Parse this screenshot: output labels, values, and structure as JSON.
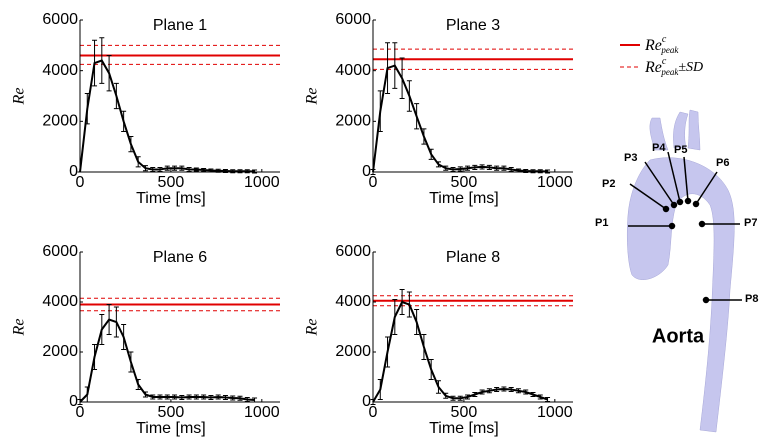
{
  "chart_data": [
    {
      "type": "line",
      "title": "Plane 1",
      "xlabel": "Time [ms]",
      "ylabel": "Re",
      "xlim": [
        0,
        1100
      ],
      "xticks": [
        0,
        500,
        1000
      ],
      "ylim": [
        0,
        6000
      ],
      "yticks": [
        0,
        2000,
        4000,
        6000
      ],
      "x": [
        0,
        40,
        80,
        120,
        160,
        200,
        240,
        280,
        320,
        360,
        400,
        440,
        480,
        520,
        560,
        600,
        640,
        680,
        720,
        760,
        800,
        840,
        880,
        920,
        960
      ],
      "series": [
        {
          "color": "#000000",
          "values": [
            0,
            2500,
            4300,
            4400,
            3900,
            3000,
            2000,
            1100,
            400,
            150,
            100,
            100,
            150,
            150,
            150,
            100,
            100,
            80,
            60,
            50,
            40,
            30,
            30,
            30,
            20
          ],
          "errors": [
            0,
            600,
            900,
            900,
            700,
            500,
            400,
            300,
            200,
            100,
            80,
            80,
            80,
            80,
            80,
            80,
            60,
            60,
            60,
            60,
            60,
            60,
            60,
            60,
            60
          ]
        }
      ],
      "reference": {
        "value": 4600,
        "lower": 4250,
        "upper": 5000,
        "color": "#e00000"
      }
    },
    {
      "type": "line",
      "title": "Plane 3",
      "xlabel": "Time [ms]",
      "ylabel": "Re",
      "xlim": [
        0,
        1100
      ],
      "xticks": [
        0,
        500,
        1000
      ],
      "ylim": [
        0,
        6000
      ],
      "yticks": [
        0,
        2000,
        4000,
        6000
      ],
      "x": [
        0,
        40,
        80,
        120,
        160,
        200,
        240,
        280,
        320,
        360,
        400,
        440,
        480,
        520,
        560,
        600,
        640,
        680,
        720,
        760,
        800,
        840,
        880,
        920,
        960
      ],
      "series": [
        {
          "color": "#000000",
          "values": [
            0,
            2400,
            4100,
            4200,
            3700,
            3000,
            2200,
            1400,
            700,
            300,
            150,
            100,
            120,
            150,
            180,
            200,
            180,
            150,
            150,
            100,
            60,
            40,
            30,
            30,
            20
          ],
          "errors": [
            100,
            800,
            1000,
            900,
            800,
            600,
            500,
            300,
            200,
            100,
            80,
            80,
            80,
            80,
            80,
            80,
            80,
            80,
            80,
            80,
            60,
            60,
            60,
            60,
            60
          ]
        }
      ],
      "reference": {
        "value": 4450,
        "lower": 4050,
        "upper": 4850,
        "color": "#e00000"
      }
    },
    {
      "type": "line",
      "title": "Plane 6",
      "xlabel": "Time [ms]",
      "ylabel": "Re",
      "xlim": [
        0,
        1100
      ],
      "xticks": [
        0,
        500,
        1000
      ],
      "ylim": [
        0,
        6000
      ],
      "yticks": [
        0,
        2000,
        4000,
        6000
      ],
      "x": [
        0,
        40,
        80,
        120,
        160,
        200,
        240,
        280,
        320,
        360,
        400,
        440,
        480,
        520,
        560,
        600,
        640,
        680,
        720,
        760,
        800,
        840,
        880,
        920,
        960
      ],
      "series": [
        {
          "color": "#000000",
          "values": [
            0,
            300,
            1800,
            2900,
            3300,
            3200,
            2600,
            1600,
            700,
            300,
            200,
            200,
            200,
            200,
            180,
            200,
            200,
            200,
            180,
            200,
            180,
            160,
            150,
            100,
            80
          ],
          "errors": [
            100,
            300,
            500,
            600,
            600,
            600,
            500,
            400,
            200,
            100,
            80,
            80,
            80,
            80,
            80,
            80,
            80,
            80,
            80,
            80,
            80,
            80,
            80,
            80,
            80
          ]
        }
      ],
      "reference": {
        "value": 3900,
        "lower": 3650,
        "upper": 4150,
        "color": "#e00000"
      }
    },
    {
      "type": "line",
      "title": "Plane 8",
      "xlabel": "Time [ms]",
      "ylabel": "Re",
      "xlim": [
        0,
        1100
      ],
      "xticks": [
        0,
        500,
        1000
      ],
      "ylim": [
        0,
        6000
      ],
      "yticks": [
        0,
        2000,
        4000,
        6000
      ],
      "x": [
        0,
        40,
        80,
        120,
        160,
        200,
        240,
        280,
        320,
        360,
        400,
        440,
        480,
        520,
        560,
        600,
        640,
        680,
        720,
        760,
        800,
        840,
        880,
        920,
        960
      ],
      "series": [
        {
          "color": "#000000",
          "values": [
            0,
            500,
            2000,
            3400,
            4000,
            3900,
            3200,
            2200,
            1300,
            600,
            250,
            150,
            150,
            200,
            300,
            400,
            450,
            500,
            520,
            500,
            450,
            400,
            300,
            200,
            100
          ],
          "errors": [
            100,
            400,
            600,
            700,
            500,
            500,
            500,
            500,
            400,
            250,
            100,
            80,
            80,
            80,
            80,
            80,
            80,
            80,
            80,
            80,
            80,
            80,
            80,
            80,
            80
          ]
        }
      ],
      "reference": {
        "value": 4050,
        "lower": 3850,
        "upper": 4250,
        "color": "#e00000"
      }
    }
  ],
  "legend": {
    "items": [
      {
        "base": "Re",
        "sup": "c",
        "sub": "peak"
      },
      {
        "base": "Re",
        "sup": "c",
        "sub": "peak",
        "suffix": "±SD"
      }
    ]
  },
  "diagram": {
    "title": "Aorta",
    "points": [
      "P1",
      "P2",
      "P3",
      "P4",
      "P5",
      "P6",
      "P7",
      "P8"
    ]
  }
}
